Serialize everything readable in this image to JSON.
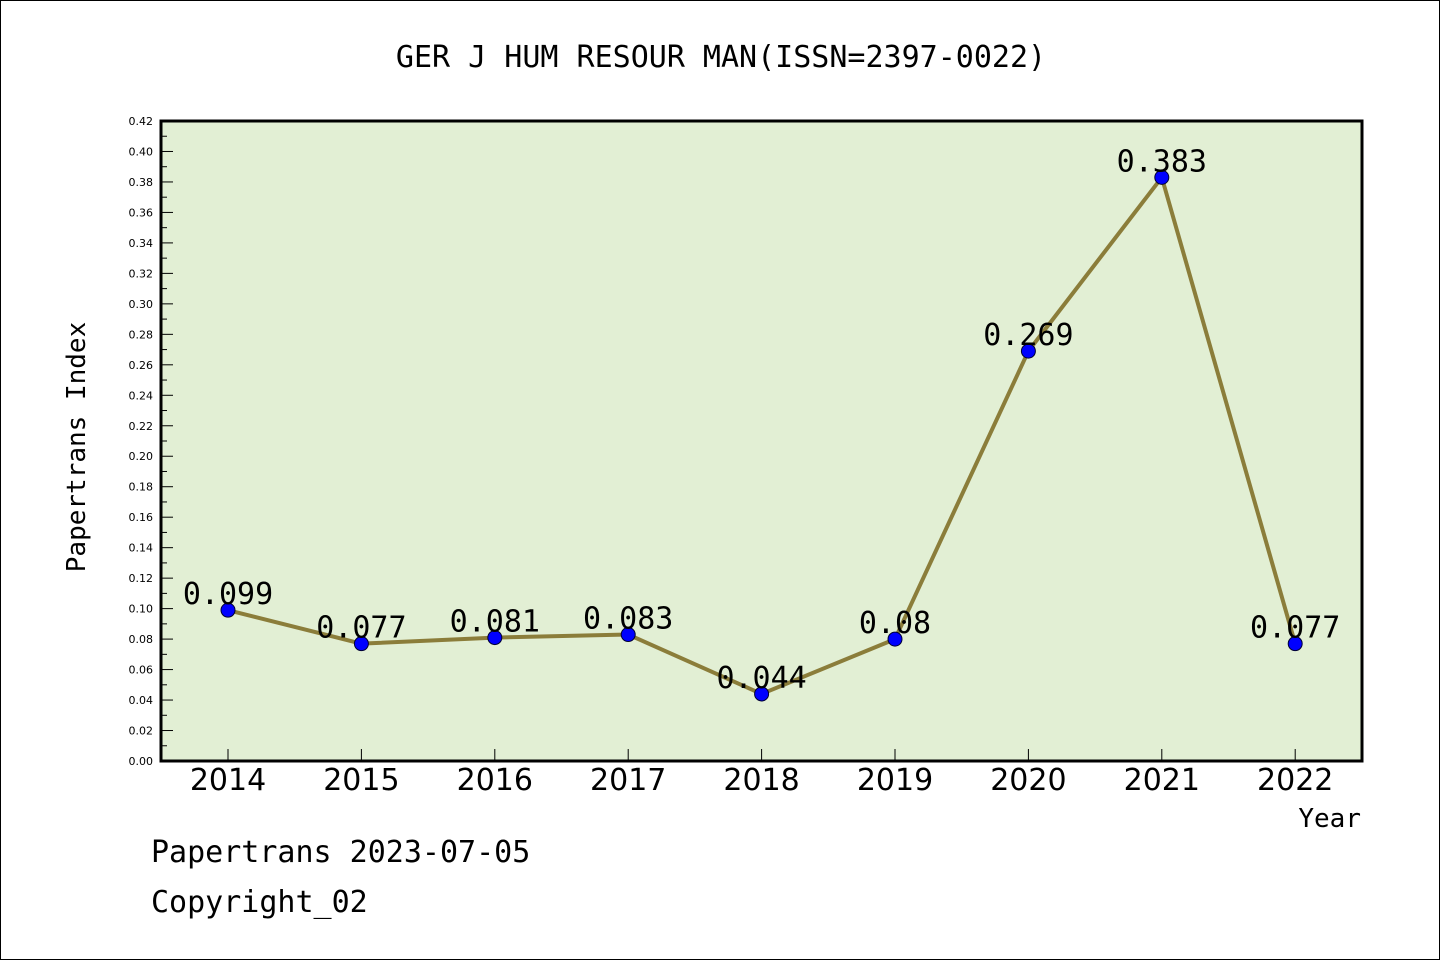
{
  "chart_data": {
    "type": "line",
    "title": "GER J HUM RESOUR MAN(ISSN=2397-0022)",
    "xlabel": "Year",
    "ylabel": "Papertrans Index",
    "categories": [
      "2014",
      "2015",
      "2016",
      "2017",
      "2018",
      "2019",
      "2020",
      "2021",
      "2022"
    ],
    "values": [
      0.099,
      0.077,
      0.081,
      0.083,
      0.044,
      0.08,
      0.269,
      0.383,
      0.077
    ],
    "data_labels": [
      "0.099",
      "0.077",
      "0.081",
      "0.083",
      "0.044",
      "0.08",
      "0.269",
      "0.383",
      "0.077"
    ],
    "ylim": [
      0,
      0.42
    ],
    "yticks": [
      "0.00",
      "0.02",
      "0.04",
      "0.06",
      "0.08",
      "0.10",
      "0.12",
      "0.14",
      "0.16",
      "0.18",
      "0.20",
      "0.22",
      "0.24",
      "0.26",
      "0.28",
      "0.30",
      "0.32",
      "0.34",
      "0.36",
      "0.38",
      "0.40",
      "0.42"
    ],
    "grid": false,
    "colors": {
      "plot_background": "#e2efd4",
      "line": "#8b7d3a",
      "marker": "#0000ff"
    }
  },
  "footer": {
    "date_line": "Papertrans 2023-07-05",
    "copyright_line": "Copyright_02"
  }
}
